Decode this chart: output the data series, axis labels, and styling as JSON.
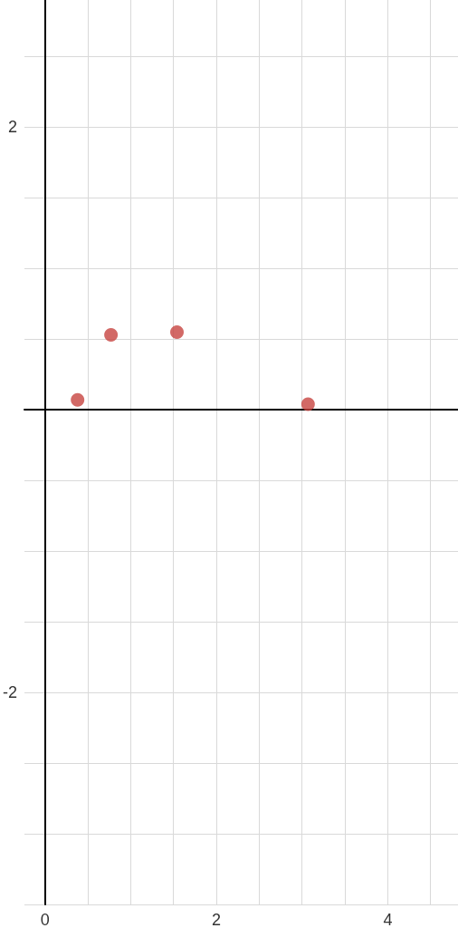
{
  "chart_data": {
    "type": "scatter",
    "x": [
      0.38,
      0.77,
      1.54,
      3.07
    ],
    "values": [
      0.07,
      0.53,
      0.55,
      0.04
    ],
    "color": "#c74440",
    "marker": "circle",
    "xlim": [
      -0.24,
      4.82
    ],
    "ylim": [
      -3.5,
      2.9
    ],
    "xticks": [
      0,
      {
        "value": 0.5,
        "label": null
      },
      {
        "value": 1,
        "label": null
      },
      {
        "value": 1.5,
        "label": null
      },
      2,
      {
        "value": 2.5,
        "label": null
      },
      {
        "value": 3,
        "label": null
      },
      {
        "value": 3.5,
        "label": null
      },
      4,
      {
        "value": 4.5,
        "label": null
      }
    ],
    "yticks": [
      {
        "value": -3.5,
        "label": null
      },
      {
        "value": -3,
        "label": null
      },
      {
        "value": -2.5,
        "label": null
      },
      -2,
      {
        "value": -1.5,
        "label": null
      },
      {
        "value": -1,
        "label": null
      },
      {
        "value": -0.5,
        "label": null
      },
      {
        "value": 0,
        "label": null
      },
      {
        "value": 0.5,
        "label": null
      },
      {
        "value": 1,
        "label": null
      },
      {
        "value": 1.5,
        "label": null
      },
      2,
      {
        "value": 2.5,
        "label": null
      }
    ],
    "grid": true
  }
}
